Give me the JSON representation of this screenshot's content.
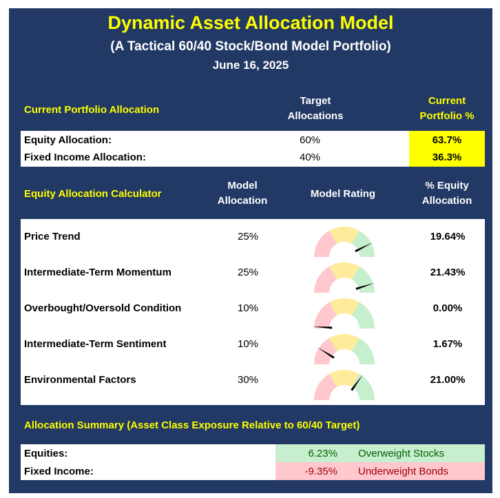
{
  "header": {
    "title": "Dynamic Asset Allocation Model",
    "subtitle": "(A Tactical 60/40 Stock/Bond Model Portfolio)",
    "date": "June 16, 2025"
  },
  "portfolio": {
    "section_title": "Current Portfolio Allocation",
    "col_target_line1": "Target",
    "col_target_line2": "Allocations",
    "col_current_line1": "Current",
    "col_current_line2": "Portfolio %",
    "rows": [
      {
        "label": "Equity Allocation:",
        "target": "60%",
        "current": "63.7%"
      },
      {
        "label": "Fixed Income Allocation:",
        "target": "40%",
        "current": "36.3%"
      }
    ]
  },
  "calculator": {
    "section_title": "Equity Allocation Calculator",
    "col_model_line1": "Model",
    "col_model_line2": "Allocation",
    "col_rating": "Model Rating",
    "col_equity_line1": "% Equity",
    "col_equity_line2": "Allocation",
    "rows": [
      {
        "label": "Price Trend",
        "model": "25%",
        "equity": "19.64%",
        "needle": 0.85
      },
      {
        "label": "Intermediate-Term Momentum",
        "model": "25%",
        "equity": "21.43%",
        "needle": 0.9
      },
      {
        "label": "Overbought/Oversold Condition",
        "model": "10%",
        "equity": "0.00%",
        "needle": 0.02
      },
      {
        "label": "Intermediate-Term Sentiment",
        "model": "10%",
        "equity": "1.67%",
        "needle": 0.18
      },
      {
        "label": "Environmental Factors",
        "model": "30%",
        "equity": "21.00%",
        "needle": 0.7
      }
    ],
    "zone_colors": [
      "#ffc7ce",
      "#ffeb9c",
      "#c6efce"
    ]
  },
  "summary": {
    "section_title": "Allocation Summary (Asset Class Exposure Relative to 60/40 Target)",
    "rows": [
      {
        "label": "Equities:",
        "value": "6.23%",
        "note": "Overweight Stocks",
        "tone": "green"
      },
      {
        "label": "Fixed Income:",
        "value": "-9.35%",
        "note": "Underweight Bonds",
        "tone": "red"
      }
    ]
  },
  "colors": {
    "background": "#213964",
    "accent_yellow": "#ffff00",
    "positive_green": "#c7eece",
    "negative_red": "#ffc7ce",
    "positive_text": "#006100",
    "negative_text": "#9c0006"
  }
}
